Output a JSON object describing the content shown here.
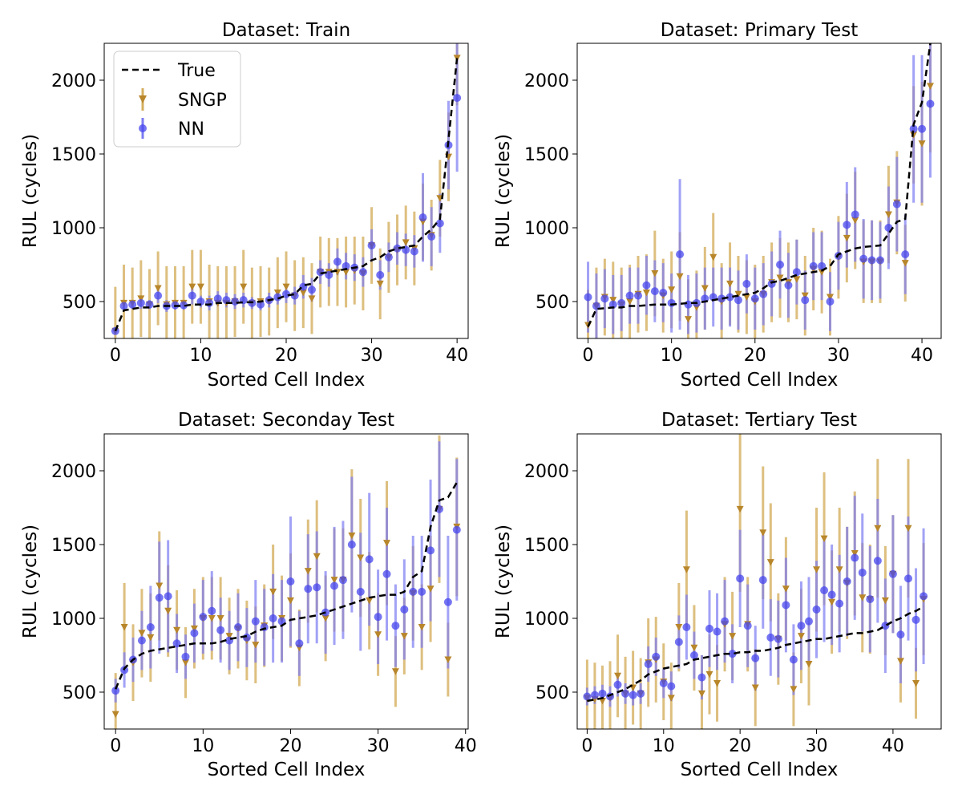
{
  "colors": {
    "true_line": "#000000",
    "sngp": "#b8862b",
    "sngp_bar": "#d4af5f",
    "nn": "#4747ee",
    "nn_bar": "#7b7bf2",
    "background": "#ffffff"
  },
  "legend": {
    "placement": "top-left of first panel",
    "entries": [
      {
        "label": "True",
        "icon": "dashed-line"
      },
      {
        "label": "SNGP",
        "icon": "triangle-errorbar"
      },
      {
        "label": "NN",
        "icon": "circle-errorbar"
      }
    ]
  },
  "chart_data": [
    {
      "type": "scatter",
      "title": "Dataset: Train",
      "xlabel": "Sorted Cell Index",
      "ylabel": "RUL (cycles)",
      "xlim": [
        -1.3,
        41.3
      ],
      "ylim": [
        250,
        2250
      ],
      "xticks": [
        0,
        10,
        20,
        30,
        40
      ],
      "yticks": [
        500,
        1000,
        1500,
        2000
      ],
      "grid": false,
      "legend": true,
      "true": [
        300,
        440,
        450,
        460,
        460,
        470,
        470,
        470,
        470,
        480,
        480,
        480,
        490,
        490,
        490,
        495,
        495,
        500,
        510,
        520,
        540,
        550,
        610,
        620,
        690,
        700,
        710,
        720,
        730,
        740,
        780,
        800,
        840,
        860,
        870,
        880,
        940,
        990,
        1060,
        1600,
        2150
      ],
      "sngp": [
        300,
        490,
        490,
        520,
        480,
        590,
        480,
        490,
        490,
        600,
        600,
        500,
        490,
        490,
        500,
        600,
        490,
        500,
        500,
        560,
        600,
        540,
        560,
        520,
        700,
        700,
        700,
        700,
        710,
        690,
        880,
        620,
        800,
        850,
        900,
        860,
        1040,
        950,
        1200,
        1480,
        2150
      ],
      "sngp_err": [
        300,
        260,
        240,
        260,
        240,
        250,
        260,
        250,
        250,
        250,
        250,
        250,
        250,
        250,
        240,
        250,
        240,
        240,
        230,
        240,
        240,
        240,
        240,
        240,
        240,
        230,
        230,
        240,
        230,
        250,
        260,
        240,
        240,
        240,
        250,
        250,
        260,
        240,
        260,
        300,
        320
      ],
      "nn": [
        300,
        470,
        480,
        490,
        480,
        540,
        470,
        475,
        475,
        540,
        500,
        490,
        520,
        510,
        500,
        510,
        490,
        480,
        510,
        530,
        550,
        540,
        600,
        580,
        700,
        680,
        770,
        740,
        730,
        700,
        880,
        680,
        800,
        860,
        850,
        840,
        1070,
        940,
        1030,
        1560,
        1880
      ],
      "nn_err": [
        10,
        20,
        30,
        40,
        30,
        50,
        40,
        30,
        30,
        60,
        40,
        50,
        50,
        50,
        50,
        50,
        40,
        40,
        50,
        50,
        60,
        60,
        80,
        80,
        80,
        80,
        90,
        90,
        90,
        100,
        110,
        100,
        100,
        110,
        110,
        110,
        300,
        200,
        200,
        300,
        500
      ]
    },
    {
      "type": "scatter",
      "title": "Dataset: Primary Test",
      "xlabel": "Sorted Cell Index",
      "ylabel": "RUL (cycles)",
      "xlim": [
        -1.3,
        42.3
      ],
      "ylim": [
        250,
        2250
      ],
      "xticks": [
        0,
        10,
        20,
        30,
        40
      ],
      "yticks": [
        500,
        1000,
        1500,
        2000
      ],
      "grid": false,
      "legend": false,
      "true": [
        330,
        450,
        455,
        460,
        460,
        470,
        470,
        475,
        480,
        480,
        480,
        485,
        490,
        490,
        500,
        510,
        520,
        530,
        540,
        550,
        560,
        590,
        630,
        640,
        660,
        680,
        690,
        700,
        710,
        740,
        820,
        840,
        860,
        870,
        875,
        880,
        960,
        1040,
        1060,
        1700,
        1850,
        2250
      ],
      "sngp": [
        340,
        470,
        530,
        510,
        480,
        500,
        550,
        560,
        690,
        540,
        580,
        670,
        380,
        460,
        590,
        800,
        500,
        620,
        550,
        530,
        500,
        550,
        630,
        660,
        630,
        650,
        540,
        720,
        700,
        530,
        800,
        930,
        1050,
        770,
        770,
        770,
        1090,
        1170,
        760,
        1630,
        1570,
        1960
      ],
      "sngp_err": [
        240,
        260,
        260,
        260,
        250,
        250,
        260,
        260,
        290,
        250,
        260,
        300,
        270,
        250,
        280,
        300,
        260,
        280,
        260,
        250,
        250,
        260,
        270,
        270,
        270,
        270,
        270,
        280,
        280,
        260,
        280,
        300,
        330,
        280,
        280,
        280,
        330,
        350,
        260,
        330,
        420,
        450
      ],
      "nn": [
        530,
        470,
        520,
        480,
        490,
        540,
        540,
        610,
        570,
        560,
        490,
        820,
        480,
        490,
        520,
        530,
        520,
        530,
        510,
        620,
        520,
        550,
        620,
        750,
        610,
        700,
        510,
        740,
        740,
        500,
        810,
        1020,
        1090,
        790,
        780,
        780,
        1000,
        1160,
        820,
        1670,
        1670,
        1840
      ],
      "nn_err": [
        240,
        220,
        200,
        200,
        190,
        190,
        190,
        200,
        210,
        200,
        200,
        510,
        200,
        200,
        210,
        200,
        210,
        200,
        200,
        200,
        210,
        210,
        220,
        230,
        220,
        220,
        200,
        230,
        230,
        200,
        230,
        290,
        320,
        270,
        270,
        260,
        280,
        320,
        270,
        500,
        500,
        500
      ]
    },
    {
      "type": "scatter",
      "title": "Dataset: Seconday Test",
      "xlabel": "Sorted Cell Index",
      "ylabel": "RUL (cycles)",
      "xlim": [
        -1.3,
        40.3
      ],
      "ylim": [
        250,
        2250
      ],
      "xticks": [
        0,
        10,
        20,
        30,
        40
      ],
      "yticks": [
        500,
        1000,
        1500,
        2000
      ],
      "grid": false,
      "legend": false,
      "true": [
        520,
        660,
        720,
        760,
        780,
        790,
        800,
        810,
        820,
        830,
        830,
        830,
        840,
        860,
        870,
        880,
        910,
        930,
        940,
        950,
        990,
        1000,
        1010,
        1020,
        1040,
        1060,
        1080,
        1100,
        1120,
        1140,
        1150,
        1160,
        1160,
        1180,
        1280,
        1320,
        1620,
        1800,
        1820,
        1920
      ],
      "sngp": [
        350,
        940,
        700,
        900,
        870,
        1220,
        1050,
        920,
        700,
        930,
        1000,
        1000,
        1000,
        880,
        930,
        850,
        820,
        950,
        1180,
        1000,
        1120,
        800,
        1320,
        1420,
        1000,
        1260,
        1260,
        1560,
        1410,
        1120,
        890,
        1510,
        640,
        880,
        1170,
        940,
        1200,
        1740,
        720,
        1620
      ],
      "sngp_err": [
        280,
        300,
        260,
        300,
        300,
        370,
        310,
        270,
        240,
        270,
        280,
        280,
        280,
        260,
        270,
        270,
        260,
        280,
        320,
        290,
        320,
        260,
        350,
        380,
        290,
        350,
        350,
        450,
        400,
        330,
        280,
        420,
        240,
        260,
        320,
        290,
        360,
        500,
        250,
        470
      ],
      "nn": [
        510,
        650,
        720,
        850,
        940,
        1140,
        1150,
        830,
        740,
        900,
        1010,
        1050,
        920,
        850,
        940,
        870,
        980,
        940,
        1000,
        980,
        1250,
        830,
        1200,
        1210,
        1040,
        1220,
        1260,
        1500,
        1180,
        1400,
        1010,
        1300,
        950,
        1060,
        1180,
        1180,
        1460,
        1740,
        1110,
        1600
      ],
      "nn_err": [
        80,
        120,
        150,
        200,
        280,
        380,
        380,
        200,
        150,
        200,
        250,
        270,
        220,
        200,
        230,
        200,
        280,
        260,
        300,
        280,
        440,
        220,
        370,
        380,
        280,
        400,
        400,
        460,
        400,
        450,
        320,
        450,
        280,
        340,
        380,
        380,
        480,
        460,
        450,
        480
      ]
    },
    {
      "type": "scatter",
      "title": "Dataset: Tertiary Test",
      "xlabel": "Sorted Cell Index",
      "ylabel": "RUL (cycles)",
      "xlim": [
        -1.3,
        46.3
      ],
      "ylim": [
        250,
        2250
      ],
      "xticks": [
        0,
        10,
        20,
        30,
        40
      ],
      "yticks": [
        500,
        1000,
        1500,
        2000
      ],
      "grid": false,
      "legend": false,
      "true": [
        440,
        450,
        460,
        480,
        500,
        520,
        550,
        580,
        620,
        640,
        660,
        670,
        680,
        690,
        720,
        730,
        740,
        750,
        760,
        760,
        770,
        770,
        780,
        780,
        790,
        800,
        820,
        830,
        840,
        850,
        860,
        860,
        870,
        880,
        890,
        900,
        900,
        910,
        920,
        950,
        980,
        1000,
        1030,
        1050,
        1080
      ],
      "sngp": [
        460,
        450,
        440,
        460,
        610,
        490,
        530,
        490,
        700,
        720,
        570,
        460,
        940,
        1330,
        800,
        490,
        620,
        560,
        960,
        880,
        1740,
        960,
        530,
        1580,
        1380,
        860,
        1200,
        520,
        880,
        690,
        1330,
        1540,
        1110,
        1330,
        1240,
        1440,
        1140,
        1130,
        1610,
        1120,
        1300,
        710,
        1610,
        560,
        1130
      ],
      "sngp_err": [
        260,
        250,
        240,
        250,
        280,
        250,
        250,
        240,
        300,
        290,
        260,
        240,
        300,
        400,
        290,
        260,
        270,
        260,
        320,
        300,
        560,
        320,
        260,
        450,
        400,
        310,
        350,
        250,
        320,
        280,
        420,
        450,
        350,
        420,
        380,
        420,
        370,
        370,
        470,
        370,
        400,
        280,
        470,
        240,
        380
      ],
      "nn": [
        470,
        480,
        490,
        470,
        550,
        490,
        480,
        490,
        690,
        740,
        560,
        540,
        840,
        940,
        750,
        600,
        930,
        910,
        980,
        760,
        1270,
        950,
        730,
        1260,
        870,
        860,
        1090,
        720,
        950,
        980,
        1060,
        1190,
        1160,
        1100,
        1250,
        1410,
        1310,
        1130,
        1390,
        950,
        1300,
        890,
        1270,
        990,
        1150
      ],
      "nn_err": [
        60,
        60,
        60,
        70,
        80,
        70,
        70,
        70,
        120,
        130,
        100,
        100,
        180,
        220,
        160,
        150,
        260,
        260,
        280,
        200,
        330,
        280,
        220,
        330,
        260,
        260,
        320,
        240,
        300,
        300,
        330,
        350,
        340,
        330,
        370,
        420,
        400,
        360,
        420,
        320,
        400,
        330,
        420,
        350,
        460
      ]
    }
  ]
}
